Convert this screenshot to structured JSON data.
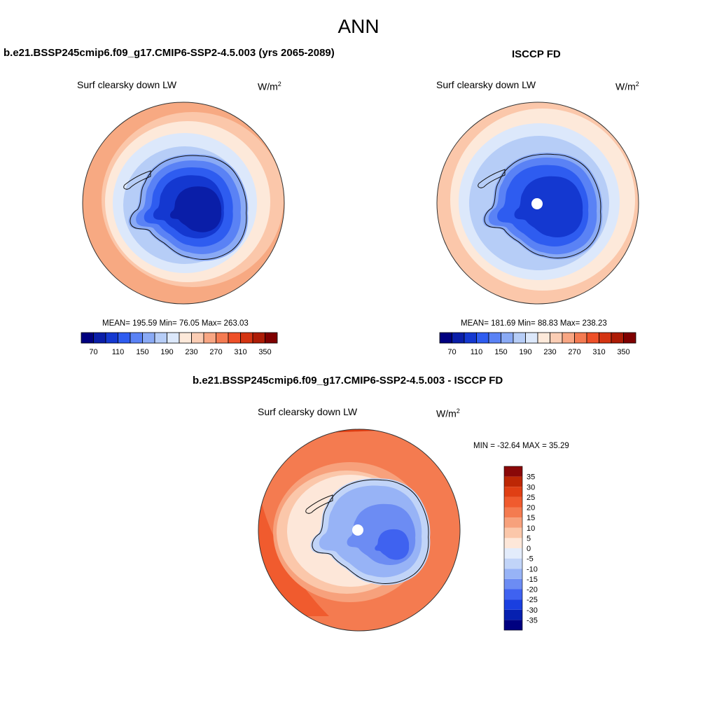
{
  "title": "ANN",
  "panels": [
    {
      "title": "b.e21.BSSP245cmip6.f09_g17.CMIP6-SSP2-4.5.003 (yrs 2065-2089)",
      "variable": "Surf clearsky down LW",
      "units_base": "W/m",
      "units_exp": "2",
      "stats": {
        "mean": "195.59",
        "min": "76.05",
        "max": "263.03"
      },
      "stats_text": "MEAN= 195.59  Min=  76.05  Max= 263.03"
    },
    {
      "title": "ISCCP FD",
      "variable": "Surf clearsky down LW",
      "units_base": "W/m",
      "units_exp": "2",
      "stats": {
        "mean": "181.69",
        "min": "88.83",
        "max": "238.23"
      },
      "stats_text": "MEAN= 181.69  Min=  88.83  Max= 238.23"
    },
    {
      "title": "b.e21.BSSP245cmip6.f09_g17.CMIP6-SSP2-4.5.003 - ISCCP FD",
      "variable": "Surf clearsky down LW",
      "units_base": "W/m",
      "units_exp": "2",
      "stats": {
        "min": "-32.64",
        "max": "35.29"
      },
      "stats_text": "MIN = -32.64 MAX =  35.29"
    }
  ],
  "colorbar_field": {
    "colors": [
      "#00007f",
      "#0a1ea8",
      "#1438d0",
      "#2e5cf0",
      "#5a82f5",
      "#8aaaf5",
      "#b6cdf7",
      "#dce8fb",
      "#fde9da",
      "#fbcdb4",
      "#f8a683",
      "#f47b52",
      "#ee5028",
      "#d43412",
      "#ad1c06",
      "#7f0000"
    ],
    "tick_labels": [
      "70",
      "110",
      "150",
      "190",
      "230",
      "270",
      "310",
      "350"
    ]
  },
  "colorbar_diff": {
    "colors": [
      "#000080",
      "#0620b0",
      "#1a3fe0",
      "#3f62f0",
      "#6c8cf3",
      "#97b3f6",
      "#c1d4f8",
      "#e3ecfb",
      "#fde7d9",
      "#fbc7aa",
      "#f7a17c",
      "#f47b50",
      "#f05b2e",
      "#e03f14",
      "#bd2705",
      "#8a0808"
    ],
    "tick_labels": [
      "35",
      "30",
      "25",
      "20",
      "15",
      "10",
      "5",
      "0",
      "-5",
      "-10",
      "-15",
      "-20",
      "-25",
      "-30",
      "-35"
    ]
  }
}
